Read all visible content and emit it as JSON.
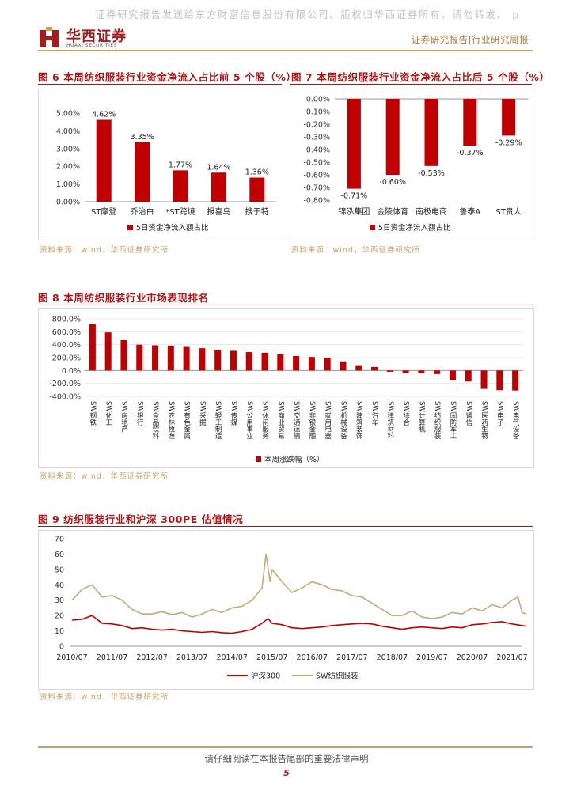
{
  "header": {
    "watermark": "证券研究报告发送给东方财富信息股份有限公司。版权归华西证券所有，请勿转发。 p",
    "logo_cn": "华西证券",
    "logo_en": "HUAXI SECURITIES",
    "report_type": "证券研究报告|行业研究周报",
    "accent_color": "#a61c1c",
    "gold_color": "#c9a063"
  },
  "fig6": {
    "title": "图 6 本周纺织服装行业资金净流入占比前 5 个股（%）",
    "source": "资料来源：wind，华西证券研究所",
    "chart_data": {
      "type": "bar",
      "categories": [
        "ST摩登",
        "乔治白",
        "*ST跨境",
        "报喜鸟",
        "搜于特"
      ],
      "values": [
        4.62,
        3.35,
        1.77,
        1.64,
        1.36
      ],
      "value_labels": [
        "4.62%",
        "3.35%",
        "1.77%",
        "1.64%",
        "1.36%"
      ],
      "yticks": [
        "0.00%",
        "1.00%",
        "2.00%",
        "3.00%",
        "4.00%",
        "5.00%"
      ],
      "ylim": [
        0,
        5
      ],
      "legend": "5日资金净流入额占比",
      "color": "#c00000"
    }
  },
  "fig7": {
    "title": "图 7 本周纺织服装行业资金净流入占比后 5 个股（%）",
    "source": "资料来源：wind，华西证券研究所",
    "chart_data": {
      "type": "bar",
      "categories": [
        "锦泓集团",
        "金陵体育",
        "南极电商",
        "鲁泰A",
        "ST贵人"
      ],
      "values": [
        -0.71,
        -0.6,
        -0.53,
        -0.37,
        -0.29
      ],
      "value_labels": [
        "-0.71%",
        "-0.60%",
        "-0.53%",
        "-0.37%",
        "-0.29%"
      ],
      "yticks": [
        "0.00%",
        "-0.10%",
        "-0.20%",
        "-0.30%",
        "-0.40%",
        "-0.50%",
        "-0.60%",
        "-0.70%",
        "-0.80%"
      ],
      "ylim": [
        -0.8,
        0
      ],
      "legend": "5日资金净流入额占比",
      "color": "#c00000"
    }
  },
  "fig8": {
    "title": "图 8 本周纺织服装行业市场表现排名",
    "source": "资料来源：wind，华西证券研究所",
    "chart_data": {
      "type": "bar",
      "categories": [
        "SW钢铁",
        "SW化工",
        "SW房地产",
        "SW银行",
        "SW食品饮料",
        "SW农林牧渔",
        "SW有色金属",
        "SW采掘",
        "SW轻工制造",
        "SW传媒",
        "SW公用事业",
        "SW休闲服务",
        "SW商业贸易",
        "SW交通运输",
        "SW非银金融",
        "SW家用电器",
        "SW机械设备",
        "SW建筑装饰",
        "SW汽车",
        "SW建筑材料",
        "SW综合",
        "SW计算机",
        "SW纺织服装",
        "SW国防军工",
        "SW通信",
        "SW医药生物",
        "SW电子",
        "SW电气设备"
      ],
      "values": [
        720,
        590,
        470,
        400,
        390,
        385,
        365,
        345,
        320,
        305,
        285,
        275,
        255,
        225,
        210,
        200,
        130,
        70,
        55,
        -20,
        -40,
        -45,
        -55,
        -145,
        -170,
        -285,
        -305,
        -310
      ],
      "yticks": [
        "800.0%",
        "600.0%",
        "400.0%",
        "200.0%",
        "0.0%",
        "-200.0%",
        "-400.0%"
      ],
      "ylim": [
        -400,
        800
      ],
      "legend": "本周涨跌幅（%）",
      "color": "#c00000"
    }
  },
  "fig9": {
    "title": "图 9 纺织服装行业和沪深 300PE 估值情况",
    "source": "资料来源：wind，华西证券研究所",
    "chart_data": {
      "type": "line",
      "xticks": [
        "2010/07",
        "2011/07",
        "2012/07",
        "2013/07",
        "2014/07",
        "2015/07",
        "2016/07",
        "2017/07",
        "2018/07",
        "2019/07",
        "2020/07",
        "2021/07"
      ],
      "yticks": [
        "0",
        "10",
        "20",
        "30",
        "40",
        "50",
        "60",
        "70"
      ],
      "ylim": [
        0,
        70
      ],
      "series": [
        {
          "name": "沪深300",
          "color": "#c00000",
          "points": [
            [
              0,
              17
            ],
            [
              0.25,
              17.5
            ],
            [
              0.5,
              20
            ],
            [
              0.75,
              15
            ],
            [
              1.0,
              14.5
            ],
            [
              1.25,
              13.5
            ],
            [
              1.5,
              11.5
            ],
            [
              1.75,
              12
            ],
            [
              2.0,
              11
            ],
            [
              2.25,
              10.5
            ],
            [
              2.5,
              11
            ],
            [
              2.75,
              10
            ],
            [
              3.0,
              9.5
            ],
            [
              3.25,
              9
            ],
            [
              3.5,
              9.5
            ],
            [
              3.75,
              8.8
            ],
            [
              4.0,
              8.5
            ],
            [
              4.25,
              9.5
            ],
            [
              4.5,
              11
            ],
            [
              4.75,
              15
            ],
            [
              4.9,
              18
            ],
            [
              5.0,
              15
            ],
            [
              5.25,
              14
            ],
            [
              5.5,
              12
            ],
            [
              5.75,
              11.5
            ],
            [
              6.0,
              12
            ],
            [
              6.25,
              12.5
            ],
            [
              6.5,
              13.5
            ],
            [
              6.75,
              14
            ],
            [
              7.0,
              14.5
            ],
            [
              7.25,
              15
            ],
            [
              7.5,
              14.5
            ],
            [
              7.75,
              13
            ],
            [
              8.0,
              12
            ],
            [
              8.25,
              11
            ],
            [
              8.5,
              12
            ],
            [
              8.75,
              12.5
            ],
            [
              9.0,
              12
            ],
            [
              9.25,
              11.5
            ],
            [
              9.5,
              12.5
            ],
            [
              9.75,
              12
            ],
            [
              10.0,
              14
            ],
            [
              10.25,
              14.5
            ],
            [
              10.5,
              15.5
            ],
            [
              10.75,
              16
            ],
            [
              11.0,
              14.5
            ],
            [
              11.25,
              13.5
            ],
            [
              11.35,
              13
            ]
          ]
        },
        {
          "name": "SW纺织服装",
          "color": "#c8a874",
          "points": [
            [
              0,
              30
            ],
            [
              0.25,
              37
            ],
            [
              0.5,
              40
            ],
            [
              0.75,
              32
            ],
            [
              1.0,
              33
            ],
            [
              1.25,
              30
            ],
            [
              1.5,
              24
            ],
            [
              1.75,
              21
            ],
            [
              2.0,
              21
            ],
            [
              2.25,
              22.5
            ],
            [
              2.5,
              20.5
            ],
            [
              2.75,
              22
            ],
            [
              3.0,
              19
            ],
            [
              3.25,
              21
            ],
            [
              3.5,
              24
            ],
            [
              3.75,
              22
            ],
            [
              4.0,
              25
            ],
            [
              4.25,
              26
            ],
            [
              4.5,
              30
            ],
            [
              4.75,
              38
            ],
            [
              4.85,
              60
            ],
            [
              4.95,
              42
            ],
            [
              5.0,
              50
            ],
            [
              5.25,
              42
            ],
            [
              5.5,
              35
            ],
            [
              5.75,
              38
            ],
            [
              6.0,
              42
            ],
            [
              6.25,
              40
            ],
            [
              6.5,
              37
            ],
            [
              6.75,
              36
            ],
            [
              7.0,
              33
            ],
            [
              7.25,
              32
            ],
            [
              7.5,
              28
            ],
            [
              7.75,
              24
            ],
            [
              8.0,
              20
            ],
            [
              8.25,
              20
            ],
            [
              8.5,
              23
            ],
            [
              8.75,
              19
            ],
            [
              9.0,
              18
            ],
            [
              9.25,
              19
            ],
            [
              9.5,
              22
            ],
            [
              9.75,
              21
            ],
            [
              10.0,
              25
            ],
            [
              10.25,
              23
            ],
            [
              10.5,
              27
            ],
            [
              10.75,
              25
            ],
            [
              11.0,
              30
            ],
            [
              11.15,
              32
            ],
            [
              11.25,
              22
            ],
            [
              11.35,
              21
            ]
          ]
        }
      ],
      "legend": [
        "沪深300",
        "SW纺织服装"
      ]
    }
  },
  "footer": {
    "notice": "请仔细阅读在本报告尾部的重要法律声明",
    "page": "5"
  }
}
